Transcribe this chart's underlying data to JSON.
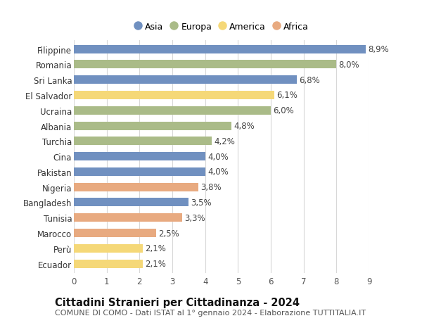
{
  "categories": [
    "Filippine",
    "Romania",
    "Sri Lanka",
    "El Salvador",
    "Ucraina",
    "Albania",
    "Turchia",
    "Cina",
    "Pakistan",
    "Nigeria",
    "Bangladesh",
    "Tunisia",
    "Marocco",
    "Perù",
    "Ecuador"
  ],
  "values": [
    8.9,
    8.0,
    6.8,
    6.1,
    6.0,
    4.8,
    4.2,
    4.0,
    4.0,
    3.8,
    3.5,
    3.3,
    2.5,
    2.1,
    2.1
  ],
  "labels": [
    "8,9%",
    "8,0%",
    "6,8%",
    "6,1%",
    "6,0%",
    "4,8%",
    "4,2%",
    "4,0%",
    "4,0%",
    "3,8%",
    "3,5%",
    "3,3%",
    "2,5%",
    "2,1%",
    "2,1%"
  ],
  "continents": [
    "Asia",
    "Europa",
    "Asia",
    "America",
    "Europa",
    "Europa",
    "Europa",
    "Asia",
    "Asia",
    "Africa",
    "Asia",
    "Africa",
    "Africa",
    "America",
    "America"
  ],
  "colors": {
    "Asia": "#7090c0",
    "Europa": "#aabb88",
    "America": "#f5d878",
    "Africa": "#e8aa80"
  },
  "xlim": [
    0,
    9
  ],
  "xticks": [
    0,
    1,
    2,
    3,
    4,
    5,
    6,
    7,
    8,
    9
  ],
  "title_bold": "Cittadini Stranieri per Cittadinanza - 2024",
  "subtitle": "COMUNE DI COMO - Dati ISTAT al 1° gennaio 2024 - Elaborazione TUTTITALIA.IT",
  "bg_color": "#ffffff",
  "bar_height": 0.55,
  "grid_color": "#d8d8d8",
  "label_fontsize": 8.5,
  "tick_fontsize": 8.5,
  "title_fontsize": 10.5,
  "subtitle_fontsize": 8.0,
  "legend_order": [
    "Asia",
    "Europa",
    "America",
    "Africa"
  ]
}
